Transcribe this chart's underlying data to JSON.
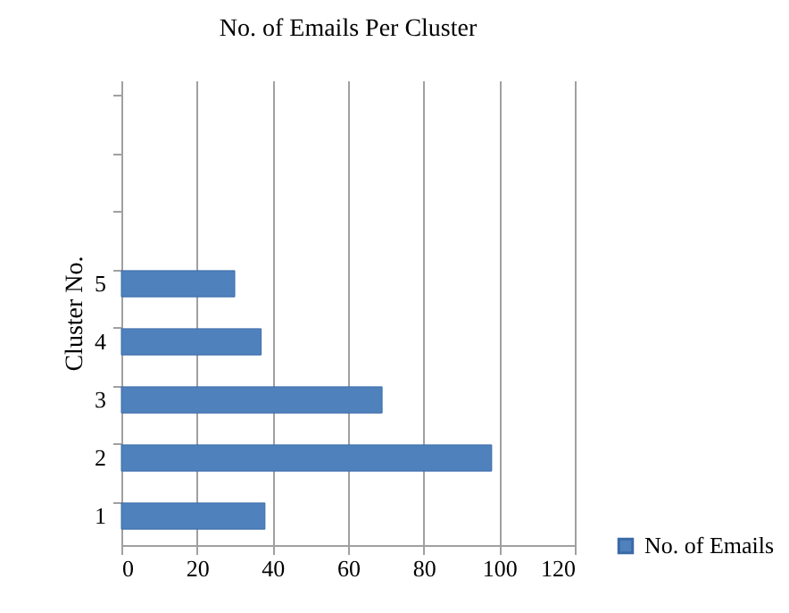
{
  "chart_data": {
    "type": "bar",
    "orientation": "horizontal",
    "title": "No. of Emails Per Cluster",
    "ylabel": "Cluster No.",
    "categories": [
      null,
      null,
      null,
      "5",
      "4",
      "3",
      "2",
      "1"
    ],
    "series": [
      {
        "name": "No. of Emails",
        "color": "#4f81bd",
        "values": [
          null,
          null,
          null,
          30,
          37,
          69,
          98,
          38
        ]
      }
    ],
    "xlim": [
      0,
      120
    ],
    "xticks": [
      0,
      20,
      40,
      60,
      80,
      100,
      120
    ],
    "grid": "x",
    "legend": "right"
  }
}
